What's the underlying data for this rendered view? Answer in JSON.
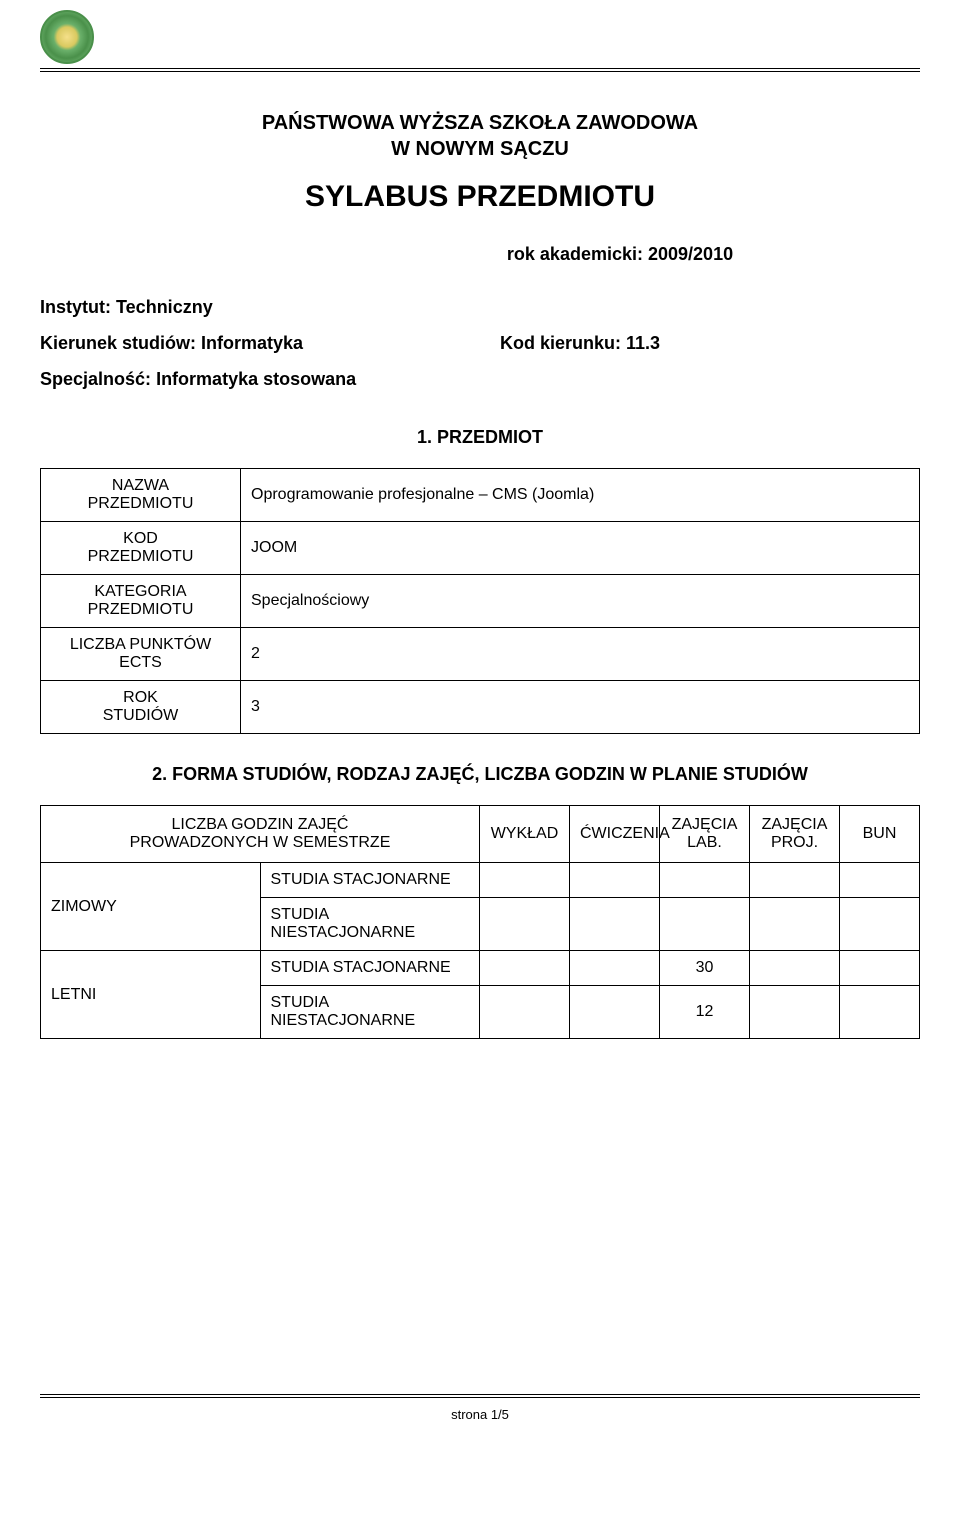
{
  "header": {
    "school_line1": "PAŃSTWOWA WYŻSZA SZKOŁA ZAWODOWA",
    "school_line2": "W NOWYM  SĄCZU",
    "title": "SYLABUS PRZEDMIOTU",
    "year_label": "rok akademicki:",
    "year_value": "2009/2010"
  },
  "meta": {
    "institute_label": "Instytut:",
    "institute_value": "Techniczny",
    "direction_label": "Kierunek studiów:",
    "direction_value": "Informatyka",
    "code_label": "Kod kierunku:",
    "code_value": "11.3",
    "specialty_label": "Specjalność:",
    "specialty_value": "Informatyka stosowana"
  },
  "section1": {
    "heading": "1. PRZEDMIOT",
    "rows": [
      {
        "label_line1": "NAZWA",
        "label_line2": "PRZEDMIOTU",
        "value": "Oprogramowanie profesjonalne – CMS (Joomla)"
      },
      {
        "label_line1": "KOD",
        "label_line2": "PRZEDMIOTU",
        "value": "JOOM"
      },
      {
        "label_line1": "KATEGORIA",
        "label_line2": "PRZEDMIOTU",
        "value": "Specjalnościowy"
      },
      {
        "label_line1": "LICZBA PUNKTÓW",
        "label_line2": "ECTS",
        "value": "2"
      },
      {
        "label_line1": "ROK",
        "label_line2": "STUDIÓW",
        "value": "3"
      }
    ]
  },
  "section2": {
    "heading": "2. FORMA STUDIÓW, RODZAJ ZAJĘĆ, LICZBA GODZIN W PLANIE STUDIÓW",
    "head_main_line1": "LICZBA GODZIN ZAJĘĆ",
    "head_main_line2": "PROWADZONYCH W SEMESTRZE",
    "columns": [
      "WYKŁAD",
      "ĆWICZENIA",
      "ZAJĘCIA LAB.",
      "ZAJĘCIA PROJ.",
      "BUN"
    ],
    "semesters": [
      {
        "label": "ZIMOWY",
        "rows": [
          {
            "mode": "STUDIA STACJONARNE",
            "cells": [
              "",
              "",
              "",
              "",
              ""
            ]
          },
          {
            "mode": "STUDIA NIESTACJONARNE",
            "cells": [
              "",
              "",
              "",
              "",
              ""
            ]
          }
        ]
      },
      {
        "label": "LETNI",
        "rows": [
          {
            "mode": "STUDIA STACJONARNE",
            "cells": [
              "",
              "",
              "30",
              "",
              ""
            ]
          },
          {
            "mode": "STUDIA NIESTACJONARNE",
            "cells": [
              "",
              "",
              "12",
              "",
              ""
            ]
          }
        ]
      }
    ]
  },
  "footer": {
    "page_label": "strona 1/5"
  },
  "colors": {
    "page_bg": "#ffffff",
    "text": "#000000",
    "border": "#000000"
  }
}
